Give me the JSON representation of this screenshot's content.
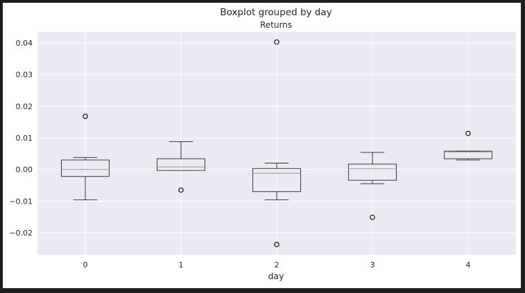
{
  "figure": {
    "suptitle": "Boxplot grouped by day"
  },
  "chart_data": {
    "type": "boxplot",
    "title": "Returns",
    "xlabel": "day",
    "ylabel": "",
    "categories": [
      "0",
      "1",
      "2",
      "3",
      "4"
    ],
    "ylim": [
      -0.027,
      0.0435
    ],
    "yticks": [
      -0.02,
      -0.01,
      0.0,
      0.01,
      0.02,
      0.03,
      0.04
    ],
    "ytick_labels": [
      "−0.02",
      "−0.01",
      "0.00",
      "0.01",
      "0.02",
      "0.03",
      "0.04"
    ],
    "grid": true,
    "boxes": [
      {
        "category": "0",
        "whisker_low": -0.0096,
        "q1": -0.0022,
        "median": 0.0,
        "q3": 0.003,
        "whisker_high": 0.0038,
        "fliers": [
          0.0168
        ]
      },
      {
        "category": "1",
        "whisker_low": -0.0003,
        "q1": -0.0003,
        "median": 0.0008,
        "q3": 0.0034,
        "whisker_high": 0.0088,
        "fliers": [
          -0.0065
        ]
      },
      {
        "category": "2",
        "whisker_low": -0.0096,
        "q1": -0.007,
        "median": -0.0012,
        "q3": 0.0003,
        "whisker_high": 0.002,
        "fliers": [
          0.0403,
          -0.0237
        ]
      },
      {
        "category": "3",
        "whisker_low": -0.0045,
        "q1": -0.0034,
        "median": 0.0002,
        "q3": 0.0017,
        "whisker_high": 0.0054,
        "fliers": [
          -0.0151
        ]
      },
      {
        "category": "4",
        "whisker_low": 0.003,
        "q1": 0.0034,
        "median": 0.0055,
        "q3": 0.0058,
        "whisker_high": 0.0058,
        "fliers": [
          0.0114
        ]
      }
    ],
    "colors": {
      "axes_background": "#eaeaf2",
      "grid": "#ffffff",
      "box": "#3a3a3a",
      "median": "#9a9a9a",
      "flier_edge": "#111111"
    }
  }
}
